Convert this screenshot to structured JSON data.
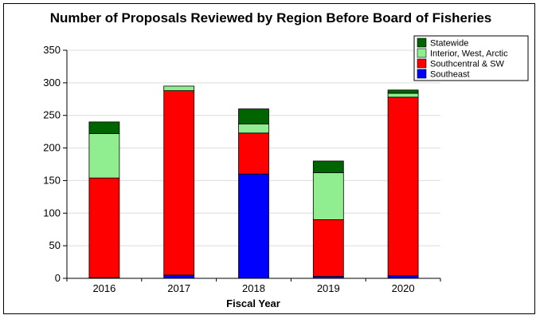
{
  "chart_data": {
    "type": "bar",
    "stacked": true,
    "title": "Number of Proposals Reviewed by Region Before Board of Fisheries",
    "xlabel": "Fiscal Year",
    "ylabel": "",
    "categories": [
      "2016",
      "2017",
      "2018",
      "2019",
      "2020"
    ],
    "ylim": [
      0,
      350
    ],
    "yticks": [
      0,
      50,
      100,
      150,
      200,
      250,
      300,
      350
    ],
    "grid": true,
    "legend_position": "top-right",
    "series": [
      {
        "name": "Southeast",
        "color": "#0000ff",
        "values": [
          1,
          5,
          160,
          3,
          4
        ]
      },
      {
        "name": "Southcentral & SW",
        "color": "#ff0000",
        "values": [
          153,
          283,
          63,
          87,
          274
        ]
      },
      {
        "name": "Interior, West, Arctic",
        "color": "#90ee90",
        "values": [
          68,
          7,
          14,
          72,
          6
        ]
      },
      {
        "name": "Statewide",
        "color": "#006400",
        "values": [
          18,
          0,
          23,
          18,
          5
        ]
      }
    ]
  }
}
